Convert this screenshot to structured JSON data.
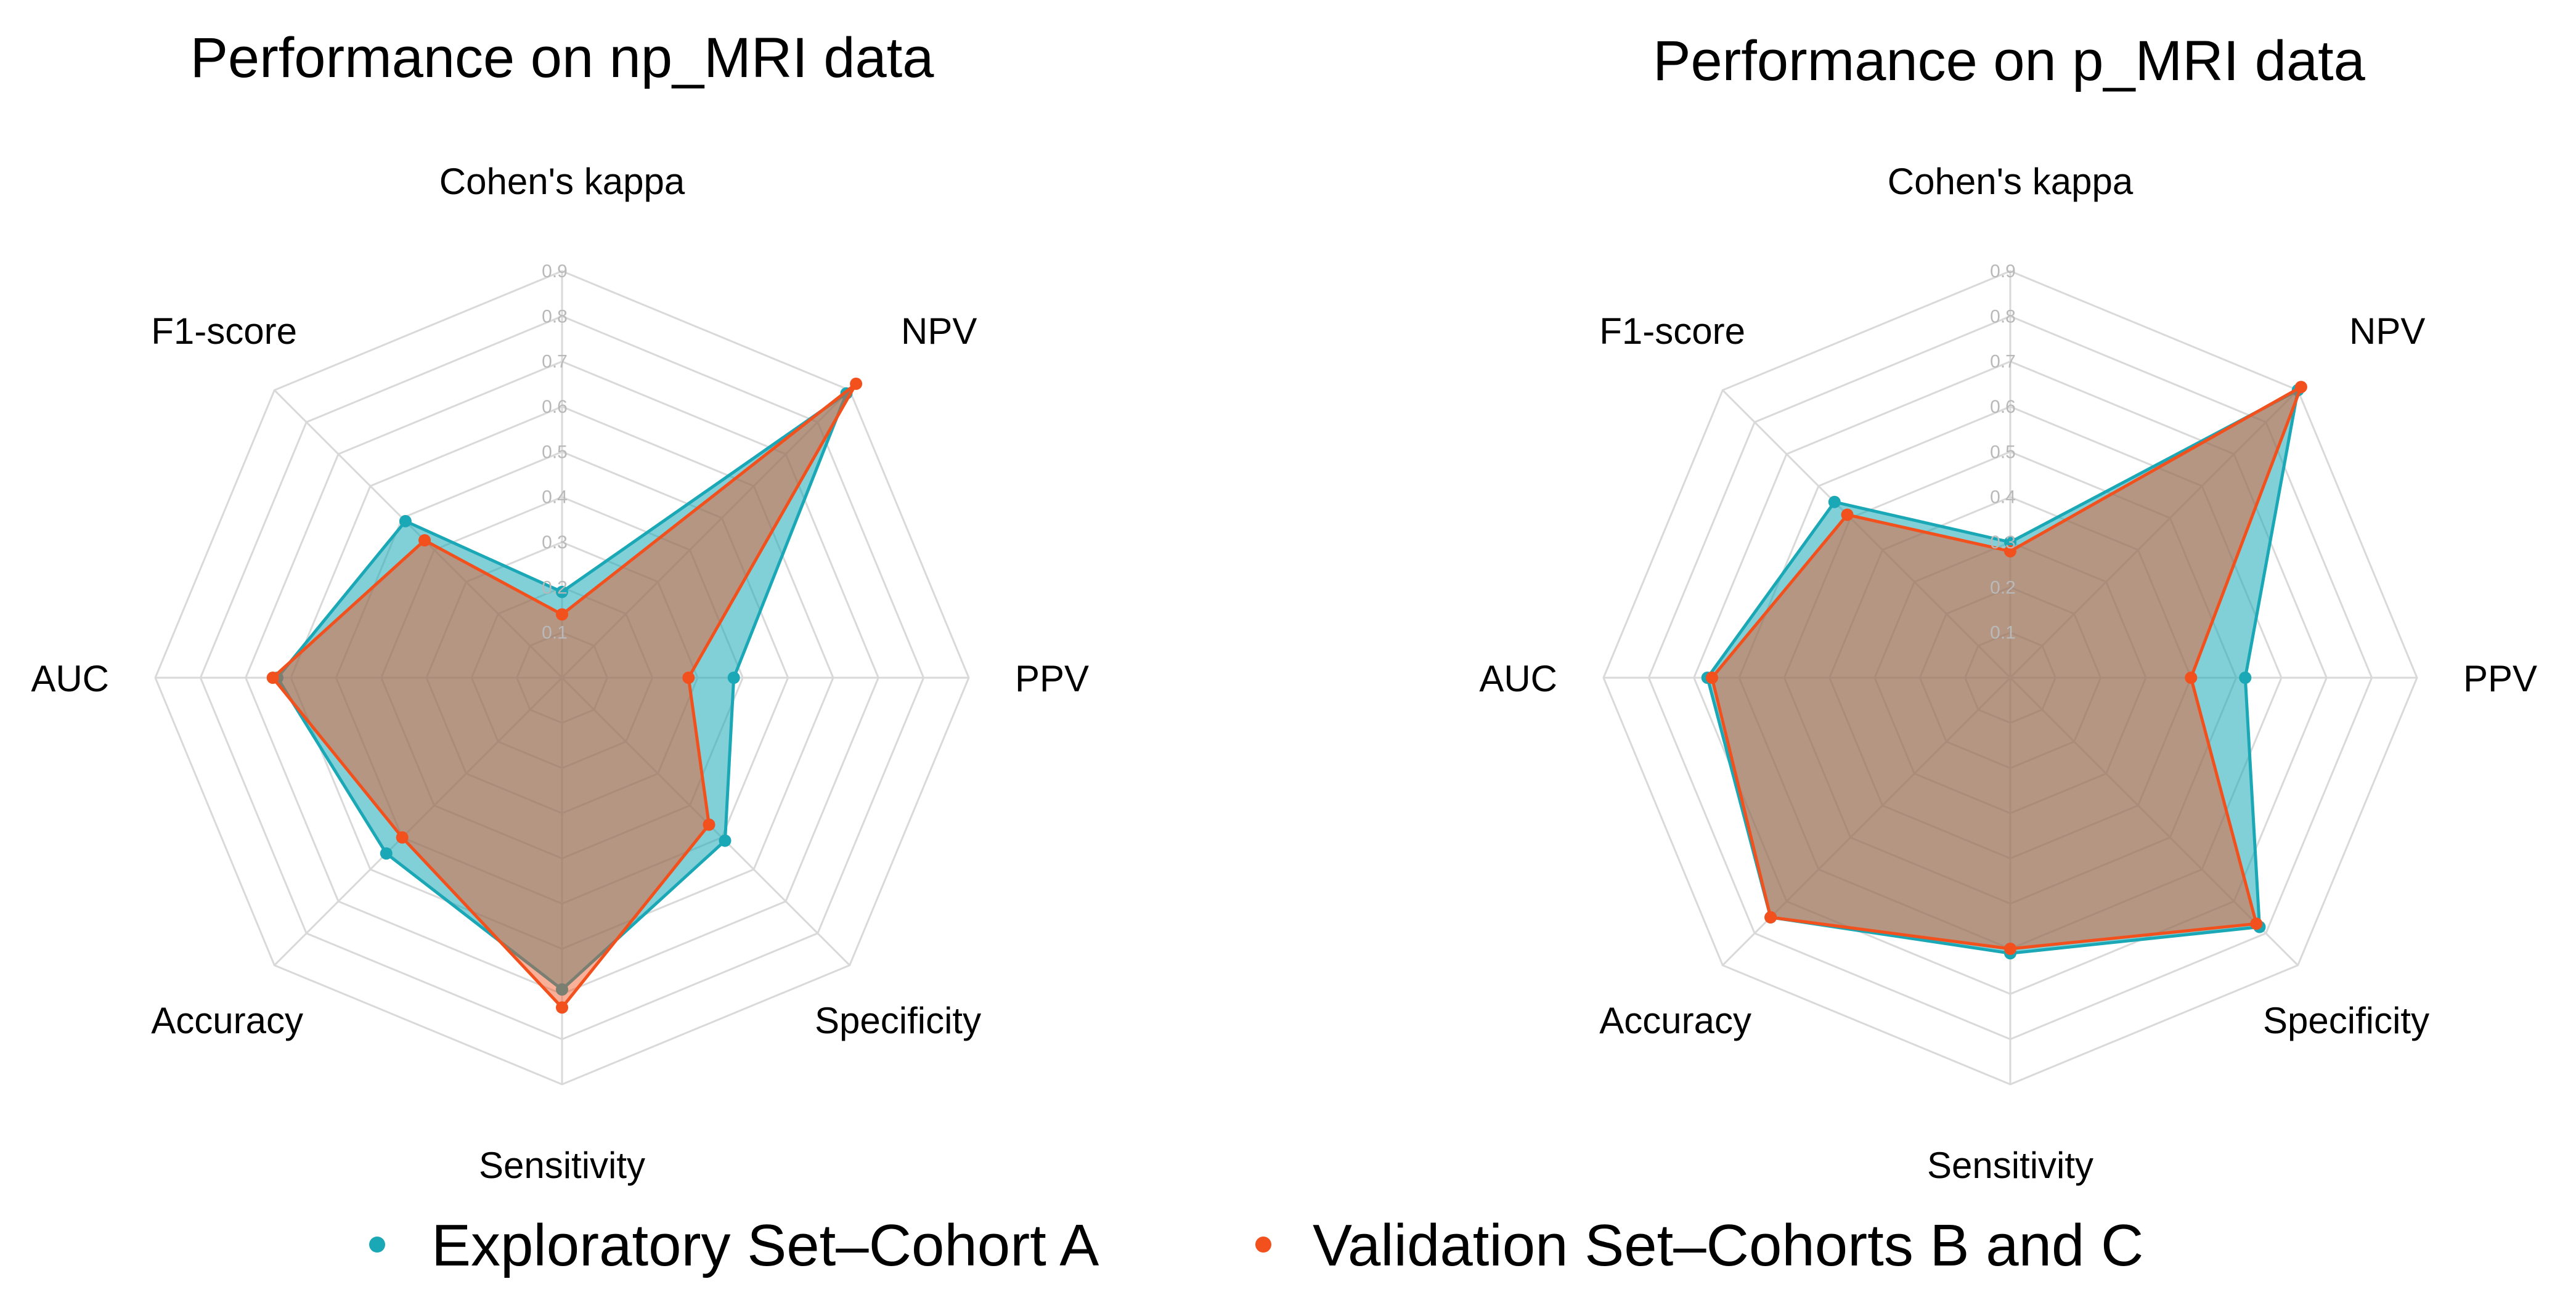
{
  "colors": {
    "series_a": "#1aa7b6",
    "series_b": "#f2501c",
    "grid": "#d9d9d9",
    "tick": "#b9b9b9"
  },
  "legend": [
    {
      "label": "Exploratory Set–Cohort A",
      "color": "#1aa7b6"
    },
    {
      "label": "Validation Set–Cohorts B and C",
      "color": "#f2501c"
    }
  ],
  "chart_data": [
    {
      "type": "radar",
      "title": "Performance on np_MRI data",
      "axes": [
        "Cohen's kappa",
        "NPV",
        "PPV",
        "Specificity",
        "Sensitivity",
        "Accuracy",
        "AUC",
        "F1-score"
      ],
      "ticks": [
        "0.1",
        "0.2",
        "0.3",
        "0.4",
        "0.5",
        "0.6",
        "0.7",
        "0.8",
        "0.9"
      ],
      "range": [
        0,
        0.9
      ],
      "series": [
        {
          "name": "Exploratory Set–Cohort A",
          "values": [
            0.19,
            0.89,
            0.38,
            0.51,
            0.69,
            0.55,
            0.63,
            0.49
          ]
        },
        {
          "name": "Validation Set–Cohorts B and C",
          "values": [
            0.14,
            0.92,
            0.28,
            0.46,
            0.73,
            0.5,
            0.64,
            0.43
          ]
        }
      ]
    },
    {
      "type": "radar",
      "title": "Performance on p_MRI data",
      "axes": [
        "Cohen's kappa",
        "NPV",
        "PPV",
        "Specificity",
        "Sensitivity",
        "Accuracy",
        "AUC",
        "F1-score"
      ],
      "ticks": [
        "0.1",
        "0.2",
        "0.3",
        "0.4",
        "0.5",
        "0.6",
        "0.7",
        "0.8",
        "0.9"
      ],
      "range": [
        0,
        0.9
      ],
      "series": [
        {
          "name": "Exploratory Set–Cohort A",
          "values": [
            0.3,
            0.9,
            0.52,
            0.78,
            0.61,
            0.75,
            0.67,
            0.55
          ]
        },
        {
          "name": "Validation Set–Cohorts B and C",
          "values": [
            0.28,
            0.91,
            0.4,
            0.77,
            0.6,
            0.75,
            0.66,
            0.51
          ]
        }
      ]
    }
  ]
}
